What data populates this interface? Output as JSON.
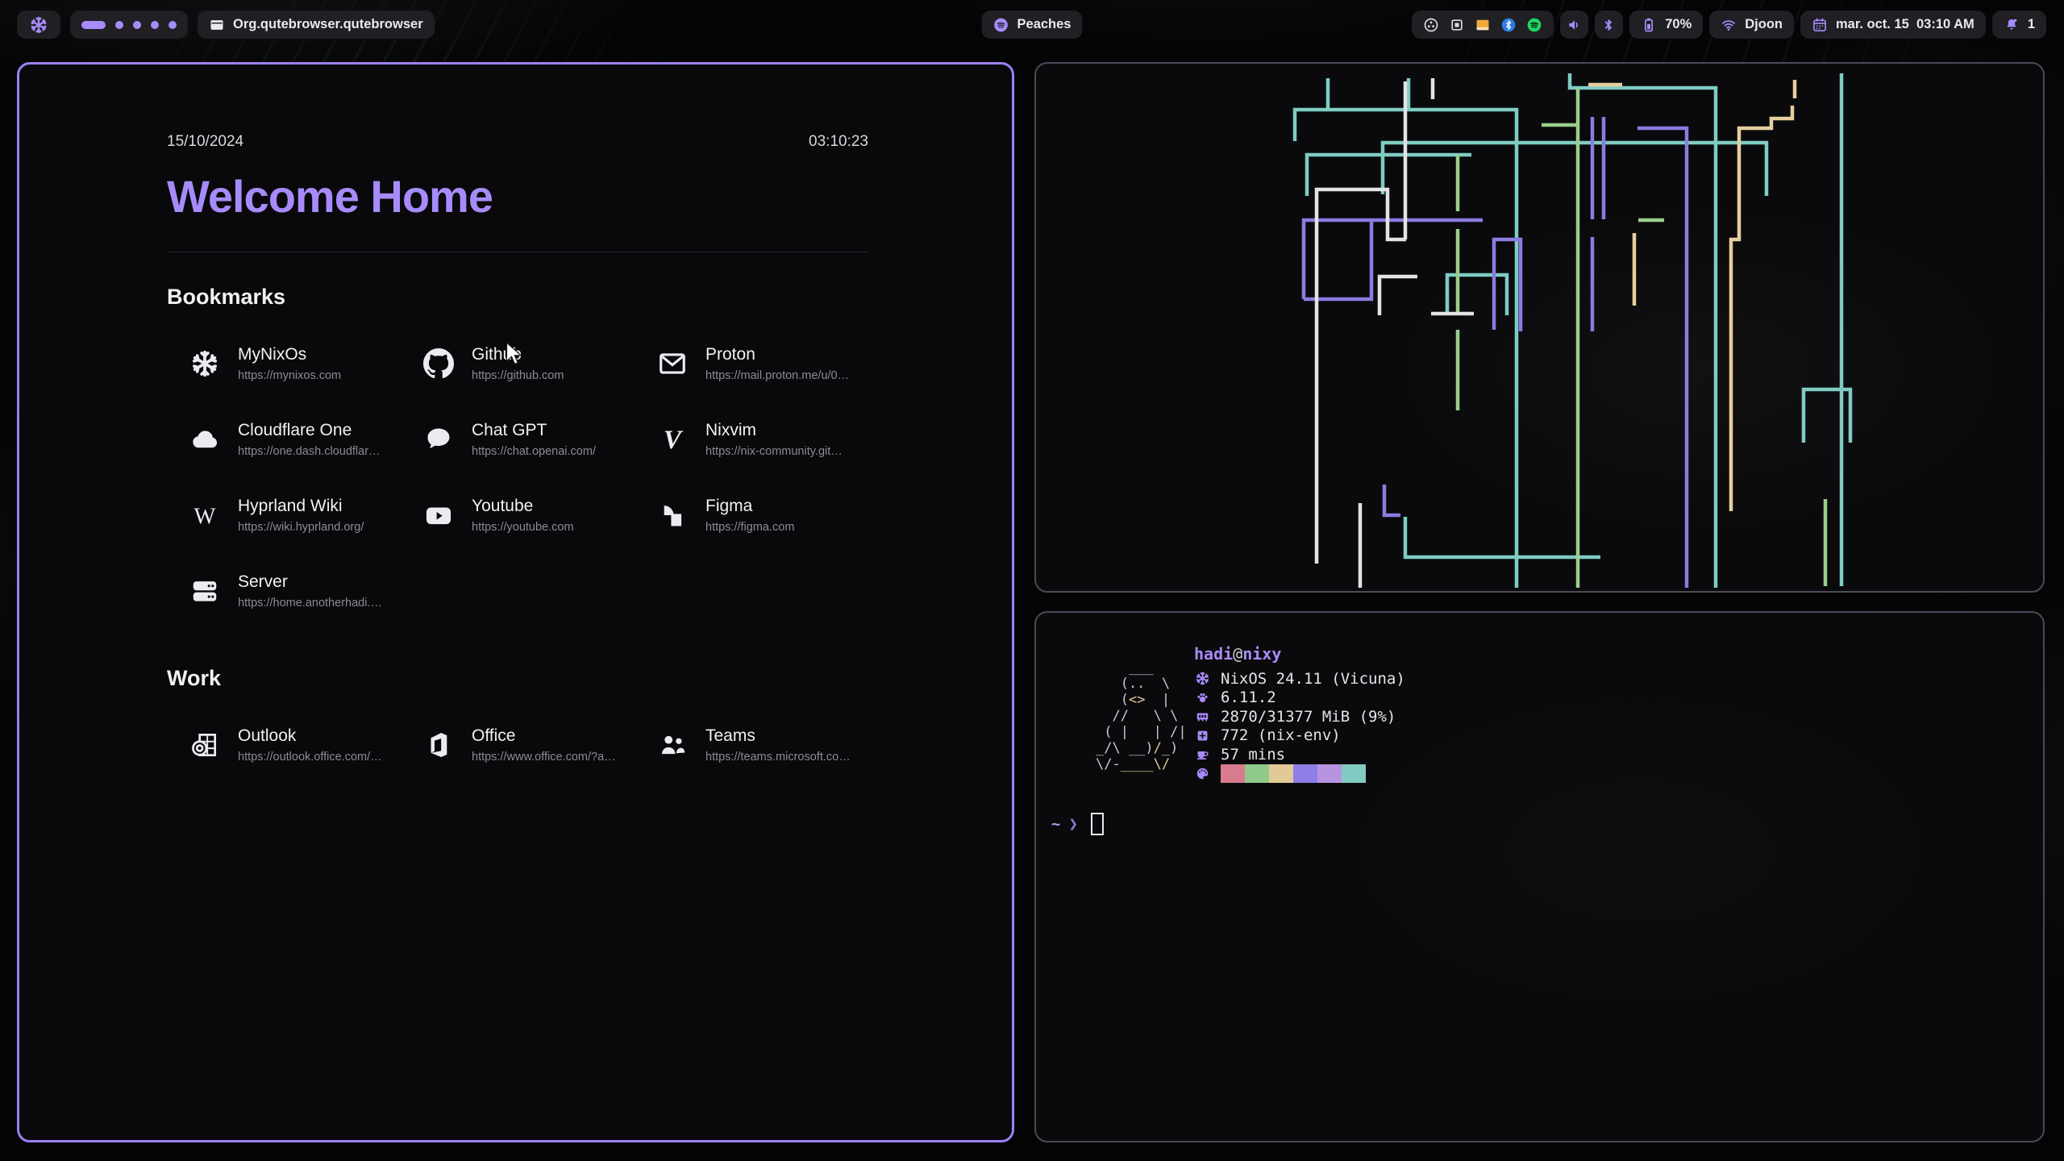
{
  "colors": {
    "accent": "#a78bfa",
    "focused_border": "#9c80f7",
    "unfocused_border": "#4a4a57",
    "window_bg": "#0a0a0c",
    "pill_bg": "#212126",
    "text": "#e9e9ee",
    "muted_text": "#8b8b94"
  },
  "topbar": {
    "logo_icon": "nix-logo-icon",
    "workspaces": {
      "count": 5,
      "active": 0
    },
    "window_icon": "window-icon",
    "window_title": "Org.qutebrowser.qutebrowser",
    "media": {
      "icon": "spotify-icon",
      "label": "Peaches"
    },
    "tray": [
      "obs",
      "box",
      "folder",
      "bluetooth-badge",
      "spotify-badge"
    ],
    "volume_icon": "speaker-icon",
    "bluetooth_icon": "bluetooth-icon",
    "battery": {
      "icon": "battery-icon",
      "label": "70%"
    },
    "network": {
      "icon": "wifi-icon",
      "label": "Djoon"
    },
    "clock": {
      "icon": "calendar-icon",
      "label": "mar. oct. 15  03:10 AM"
    },
    "notifications": {
      "icon": "bell-icon",
      "label": "1"
    }
  },
  "browser": {
    "date": "15/10/2024",
    "time": "03:10:23",
    "title": "Welcome Home",
    "sections": [
      {
        "heading": "Bookmarks",
        "items": [
          {
            "icon": "nix",
            "label": "MyNixOs",
            "url": "https://mynixos.com"
          },
          {
            "icon": "github",
            "label": "Github",
            "url": "https://github.com"
          },
          {
            "icon": "mail",
            "label": "Proton",
            "url": "https://mail.proton.me/u/0…"
          },
          {
            "icon": "cloud",
            "label": "Cloudflare One",
            "url": "https://one.dash.cloudflar…"
          },
          {
            "icon": "chat",
            "label": "Chat GPT",
            "url": "https://chat.openai.com/"
          },
          {
            "icon": "vim",
            "label": "Nixvim",
            "url": "https://nix-community.git…"
          },
          {
            "icon": "wiki",
            "label": "Hyprland Wiki",
            "url": "https://wiki.hyprland.org/"
          },
          {
            "icon": "youtube",
            "label": "Youtube",
            "url": "https://youtube.com"
          },
          {
            "icon": "figma",
            "label": "Figma",
            "url": "https://figma.com"
          },
          {
            "icon": "server",
            "label": "Server",
            "url": "https://home.anotherhadi.…"
          }
        ]
      },
      {
        "heading": "Work",
        "items": [
          {
            "icon": "outlook",
            "label": "Outlook",
            "url": "https://outlook.office.com/…"
          },
          {
            "icon": "office",
            "label": "Office",
            "url": "https://www.office.com/?a…"
          },
          {
            "icon": "teams",
            "label": "Teams",
            "url": "https://teams.microsoft.co…"
          }
        ]
      }
    ]
  },
  "fastfetch": {
    "user": "hadi",
    "separator": "@",
    "host": "nixy",
    "rows": [
      {
        "icon": "snowflake",
        "text": "NixOS 24.11 (Vicuna)"
      },
      {
        "icon": "kernel",
        "text": "6.11.2"
      },
      {
        "icon": "memory",
        "text": "2870/31377 MiB (9%)"
      },
      {
        "icon": "package",
        "text": "772 (nix-env)"
      },
      {
        "icon": "uptime",
        "text": "57 mins"
      }
    ],
    "palette_icon": "palette-icon",
    "palette": [
      "#d97b8e",
      "#8fca8b",
      "#e2ca96",
      "#8f7ee8",
      "#b794e0",
      "#82cbc2"
    ],
    "prompt": {
      "cwd": "~",
      "symbol": "❯"
    },
    "tux": [
      [
        [
          "    ___   ",
          "g"
        ]
      ],
      [
        [
          "   (..  \\ ",
          "g"
        ]
      ],
      [
        [
          "   (",
          "g"
        ],
        [
          "<>",
          "y"
        ],
        [
          "  |",
          "g"
        ]
      ],
      [
        [
          "  //   \\ \\",
          "g"
        ]
      ],
      [
        [
          " ( |   | /|",
          "g"
        ]
      ],
      [
        [
          "_",
          "y"
        ],
        [
          "/\\ __)",
          "g"
        ],
        [
          "/",
          "y"
        ],
        [
          "_)",
          "g"
        ]
      ],
      [
        [
          "\\/-",
          "g"
        ],
        [
          "____",
          "y"
        ],
        [
          "\\/",
          "y"
        ]
      ]
    ]
  },
  "pipes": {
    "stroke": 4.5,
    "colors": {
      "t": "#7fccc3",
      "p": "#8b7ce0",
      "g": "#9bcd8d",
      "w": "#e3e3e3",
      "y": "#e6cf9e"
    },
    "segments": [
      {
        "c": "t",
        "p": "362,18 362,57"
      },
      {
        "c": "t",
        "p": "462,18 462,57"
      },
      {
        "c": "t",
        "p": "321,96 321,57 596,57 596,650"
      },
      {
        "c": "t",
        "p": "430,162 430,98 906,98 906,164"
      },
      {
        "c": "t",
        "p": "336,164 336,113 540,113"
      },
      {
        "c": "t",
        "p": "662,12 662,30 843,30 843,650"
      },
      {
        "c": "t",
        "p": "999,12 999,648"
      },
      {
        "c": "t",
        "p": "952,470 952,404 1010,404 1010,470"
      },
      {
        "c": "t",
        "p": "510,312 510,262 584,262 584,312"
      },
      {
        "c": "t",
        "p": "458,562 458,612 700,612"
      },
      {
        "c": "p",
        "p": "690,66 690,193"
      },
      {
        "c": "p",
        "p": "704,66 704,193"
      },
      {
        "c": "p",
        "p": "332,292 332,194 554,194"
      },
      {
        "c": "p",
        "p": "332,292 416,292 416,194"
      },
      {
        "c": "p",
        "p": "568,330 568,218 601,218 601,332"
      },
      {
        "c": "p",
        "p": "746,80 807,80 807,650"
      },
      {
        "c": "p",
        "p": "690,215 690,332"
      },
      {
        "c": "p",
        "p": "432,522 432,560 452,560"
      },
      {
        "c": "g",
        "p": "523,113 523,183"
      },
      {
        "c": "g",
        "p": "523,205 523,310"
      },
      {
        "c": "g",
        "p": "523,330 523,430"
      },
      {
        "c": "g",
        "p": "672,30 672,650"
      },
      {
        "c": "g",
        "p": "627,76 672,76"
      },
      {
        "c": "g",
        "p": "747,194 779,194"
      },
      {
        "c": "g",
        "p": "979,540 979,648"
      },
      {
        "c": "w",
        "p": "492,18 492,44"
      },
      {
        "c": "w",
        "p": "348,620 348,156 436,156 436,218 459,218"
      },
      {
        "c": "w",
        "p": "458,22 458,218"
      },
      {
        "c": "w",
        "p": "426,312 426,264 473,264"
      },
      {
        "c": "w",
        "p": "490,310 543,310"
      },
      {
        "c": "w",
        "p": "402,545 402,650"
      },
      {
        "c": "y",
        "p": "941,20 941,43"
      },
      {
        "c": "y",
        "p": "862,555 862,218 872,218 872,80 912,80 912,68 938,68 938,52"
      },
      {
        "c": "y",
        "p": "685,26 727,26"
      },
      {
        "c": "y",
        "p": "742,210 742,300"
      }
    ]
  }
}
